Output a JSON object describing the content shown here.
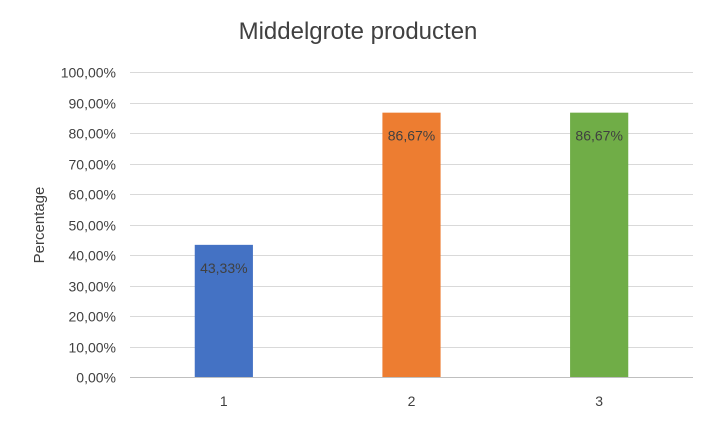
{
  "chart_data": {
    "type": "bar",
    "title": "Middelgrote producten",
    "xlabel": "",
    "ylabel": "Percentage",
    "categories": [
      "1",
      "2",
      "3"
    ],
    "values": [
      43.33,
      86.67,
      86.67
    ],
    "data_labels": [
      "43,33%",
      "86,67%",
      "86,67%"
    ],
    "bar_colors": [
      "#4472c4",
      "#ed7d31",
      "#70ad47"
    ],
    "ylim": [
      0,
      100
    ],
    "yticks": [
      {
        "value": 0,
        "label": "0,00%"
      },
      {
        "value": 10,
        "label": "10,00%"
      },
      {
        "value": 20,
        "label": "20,00%"
      },
      {
        "value": 30,
        "label": "30,00%"
      },
      {
        "value": 40,
        "label": "40,00%"
      },
      {
        "value": 50,
        "label": "50,00%"
      },
      {
        "value": 60,
        "label": "60,00%"
      },
      {
        "value": 70,
        "label": "70,00%"
      },
      {
        "value": 80,
        "label": "80,00%"
      },
      {
        "value": 90,
        "label": "90,00%"
      },
      {
        "value": 100,
        "label": "100,00%"
      }
    ],
    "grid": true,
    "legend": "none"
  }
}
